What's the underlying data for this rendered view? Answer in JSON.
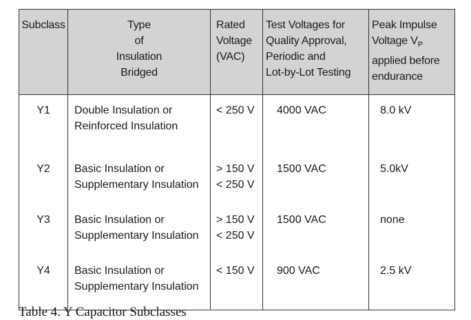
{
  "table": {
    "headers": {
      "subclass": "Subclass",
      "type_lines": [
        "Type",
        "of",
        "Insulation",
        "Bridged"
      ],
      "rated_lines": [
        "Rated",
        "Voltage",
        "(VAC)"
      ],
      "test_lines": [
        "Test Voltages for",
        "Quality Approval,",
        "Periodic and",
        "Lot-by-Lot Testing"
      ],
      "peak_line1_prefix": "Peak Impulse",
      "peak_line2_prefix": "Voltage V",
      "peak_subscript": "P",
      "peak_lines_rest": [
        "applied before",
        "endurance"
      ]
    },
    "rows": [
      {
        "subclass": "Y1",
        "type_lines": [
          "Double Insulation or",
          "Reinforced Insulation"
        ],
        "rated_lines": [
          "< 250 V"
        ],
        "test": "4000 VAC",
        "peak": "8.0 kV"
      },
      {
        "subclass": "Y2",
        "type_lines": [
          "Basic Insulation or",
          "Supplementary Insulation"
        ],
        "rated_lines": [
          "> 150 V",
          "< 250 V"
        ],
        "test": "1500 VAC",
        "peak": "5.0kV"
      },
      {
        "subclass": "Y3",
        "type_lines": [
          "Basic Insulation or",
          "Supplementary Insulation"
        ],
        "rated_lines": [
          "> 150 V",
          "< 250 V"
        ],
        "test": "1500 VAC",
        "peak": "none"
      },
      {
        "subclass": "Y4",
        "type_lines": [
          "Basic Insulation or",
          "Supplementary Insulation"
        ],
        "rated_lines": [
          "< 150 V"
        ],
        "test": "900 VAC",
        "peak": "2.5 kV"
      }
    ]
  },
  "caption": "Table 4. Y Capacitor Subclasses"
}
